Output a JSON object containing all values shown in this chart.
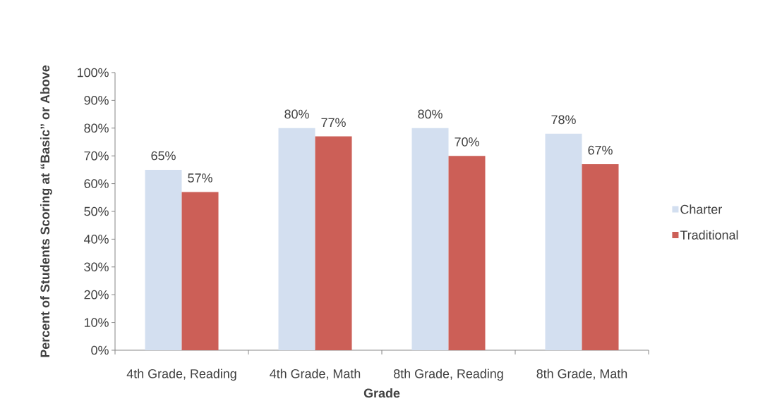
{
  "chart_data": {
    "type": "bar",
    "xlabel": "Grade",
    "ylabel": "Percent of Students Scoring at “Basic” or Above",
    "categories": [
      "4th Grade, Reading",
      "4th Grade, Math",
      "8th Grade, Reading",
      "8th Grade, Math"
    ],
    "series": [
      {
        "name": "Charter",
        "color": "#d3dff0",
        "values": [
          65,
          80,
          80,
          78
        ],
        "value_labels": [
          "65%",
          "80%",
          "80%",
          "78%"
        ]
      },
      {
        "name": "Traditional",
        "color": "#cc5f57",
        "values": [
          57,
          77,
          70,
          67
        ],
        "value_labels": [
          "57%",
          "77%",
          "70%",
          "67%"
        ]
      }
    ],
    "ylim": [
      0,
      100
    ],
    "yticks": [
      {
        "value": 0,
        "label": "0%"
      },
      {
        "value": 10,
        "label": "10%"
      },
      {
        "value": 20,
        "label": "20%"
      },
      {
        "value": 30,
        "label": "30%"
      },
      {
        "value": 40,
        "label": "40%"
      },
      {
        "value": 50,
        "label": "50%"
      },
      {
        "value": 60,
        "label": "60%"
      },
      {
        "value": 70,
        "label": "70%"
      },
      {
        "value": 80,
        "label": "80%"
      },
      {
        "value": 90,
        "label": "90%"
      },
      {
        "value": 100,
        "label": "100%"
      }
    ],
    "legend": "right"
  }
}
